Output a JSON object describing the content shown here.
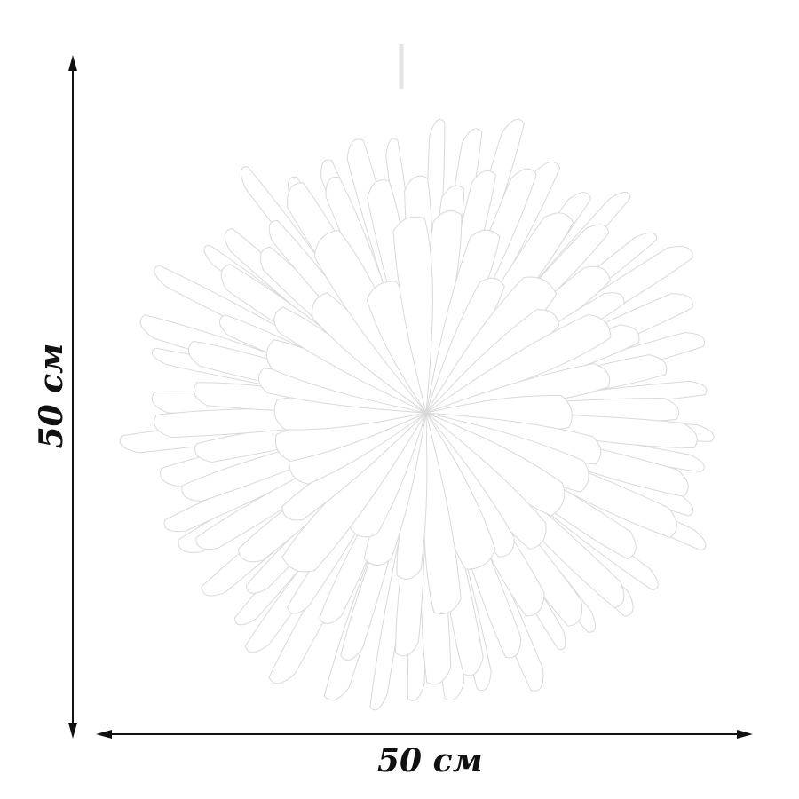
{
  "image": {
    "subject-icon": "white-paper-starburst-lamp",
    "colors": {
      "background": "#ffffff",
      "petal": "#ffffff",
      "petal_edge": "#d9d9d9",
      "arrow": "#111111"
    }
  },
  "dimensions": {
    "width_label": "50 см",
    "height_label": "50 см"
  }
}
